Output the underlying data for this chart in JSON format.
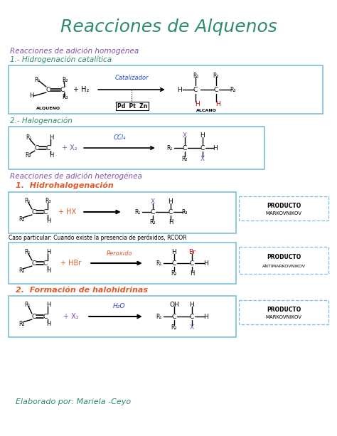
{
  "title": "Reacciones de Alquenos",
  "title_color": "#2e8b6e",
  "bg_color": "#ffffff",
  "section1_title": "Reacciones de adición homogénea",
  "section1_color": "#7b52ab",
  "rxn1_title": "1.- Hidrogenación catalítica",
  "rxn1_color": "#2e8b6e",
  "rxn2_title": "2.- Halogenación",
  "rxn2_color": "#2e8b6e",
  "section2_title": "Reacciones de adición heterogénea",
  "section2_color": "#7b52ab",
  "rxn3_title": "1.  Hidrohalogenación",
  "rxn3_color": "#e05a2b",
  "rxn3_note": "Caso particular: Cuando existe la presencia de peróxidos, RCOOR",
  "rxn4_title": "2.  Formación de halohidrinas",
  "rxn4_color": "#e05a2b",
  "footer": "Elaborado por: Mariela -Ceyo",
  "footer_color": "#2e8b6e",
  "box_color": "#7bbfda",
  "arrow_color": "#2244cc",
  "red": "#cc0000",
  "purple": "#7b52ab",
  "orange": "#e05a2b",
  "pink": "#e05a2b"
}
